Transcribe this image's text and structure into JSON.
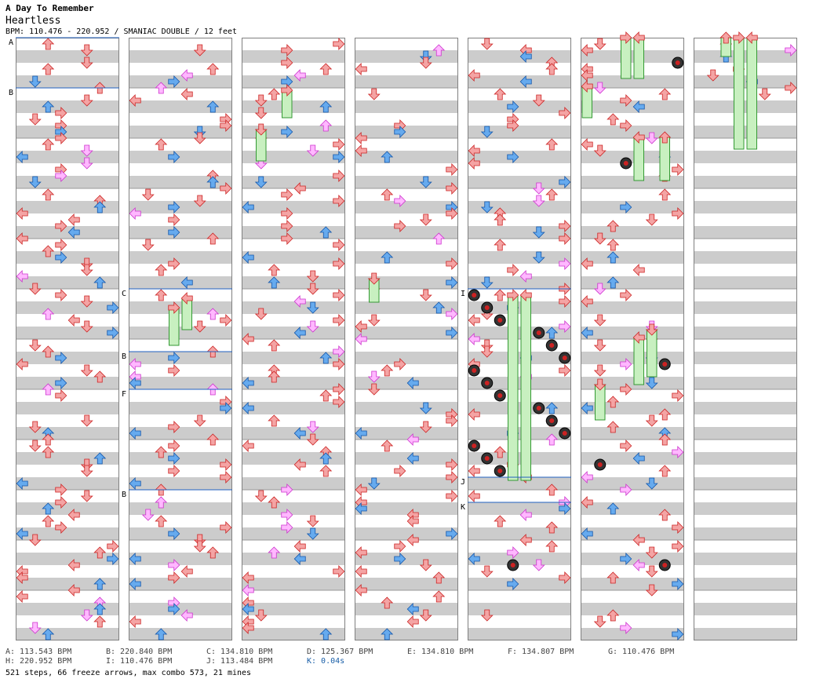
{
  "header": {
    "artist": "A Day To Remember",
    "song": "Heartless",
    "meta": "BPM: 110.476 - 220.952 / SMANIAC DOUBLE / 12 feet"
  },
  "chart_data": {
    "type": "step-chart",
    "columns": 7,
    "lanes_per_column": 8,
    "section_markers": [
      {
        "col": 0,
        "measure": 0,
        "label": "A"
      },
      {
        "col": 0,
        "measure": 1,
        "label": "B"
      },
      {
        "col": 1,
        "measure": 5,
        "label": "C"
      },
      {
        "col": 1,
        "measure": 6.25,
        "label": "B"
      },
      {
        "col": 1,
        "measure": 7,
        "label": "F"
      },
      {
        "col": 1,
        "measure": 9,
        "label": "B"
      },
      {
        "col": 4,
        "measure": 5,
        "label": "I"
      },
      {
        "col": 4,
        "measure": 8.75,
        "label": "J"
      },
      {
        "col": 4,
        "measure": 9.25,
        "label": "K"
      }
    ]
  },
  "bpm_legend": [
    {
      "key": "A",
      "text": "A: 113.543 BPM"
    },
    {
      "key": "B",
      "text": "B: 220.840 BPM"
    },
    {
      "key": "C",
      "text": "C: 134.810 BPM"
    },
    {
      "key": "D",
      "text": "D: 125.367 BPM"
    },
    {
      "key": "E",
      "text": "E: 134.810 BPM"
    },
    {
      "key": "F",
      "text": "F: 134.807 BPM"
    },
    {
      "key": "G",
      "text": "G: 110.476 BPM"
    },
    {
      "key": "H",
      "text": "H: 220.952 BPM"
    },
    {
      "key": "I",
      "text": "I: 110.476 BPM"
    },
    {
      "key": "J",
      "text": "J: 113.484 BPM"
    },
    {
      "key": "K",
      "text": "K: 0.04s"
    }
  ],
  "summary": "521 steps, 66 freeze arrows, max combo 573, 21 mines",
  "colors": {
    "stripe": "#cccccc",
    "border": "#808080",
    "marker": "#2060c0",
    "red": "#f4a4a4",
    "red_stroke": "#cc2222",
    "blue": "#66aaee",
    "blue_stroke": "#1155aa",
    "pink": "#ffb8ff",
    "pink_stroke": "#cc33cc",
    "freeze": "#c8f0c0",
    "freeze_stroke": "#339933",
    "stop_text": "#1a5fa8"
  }
}
